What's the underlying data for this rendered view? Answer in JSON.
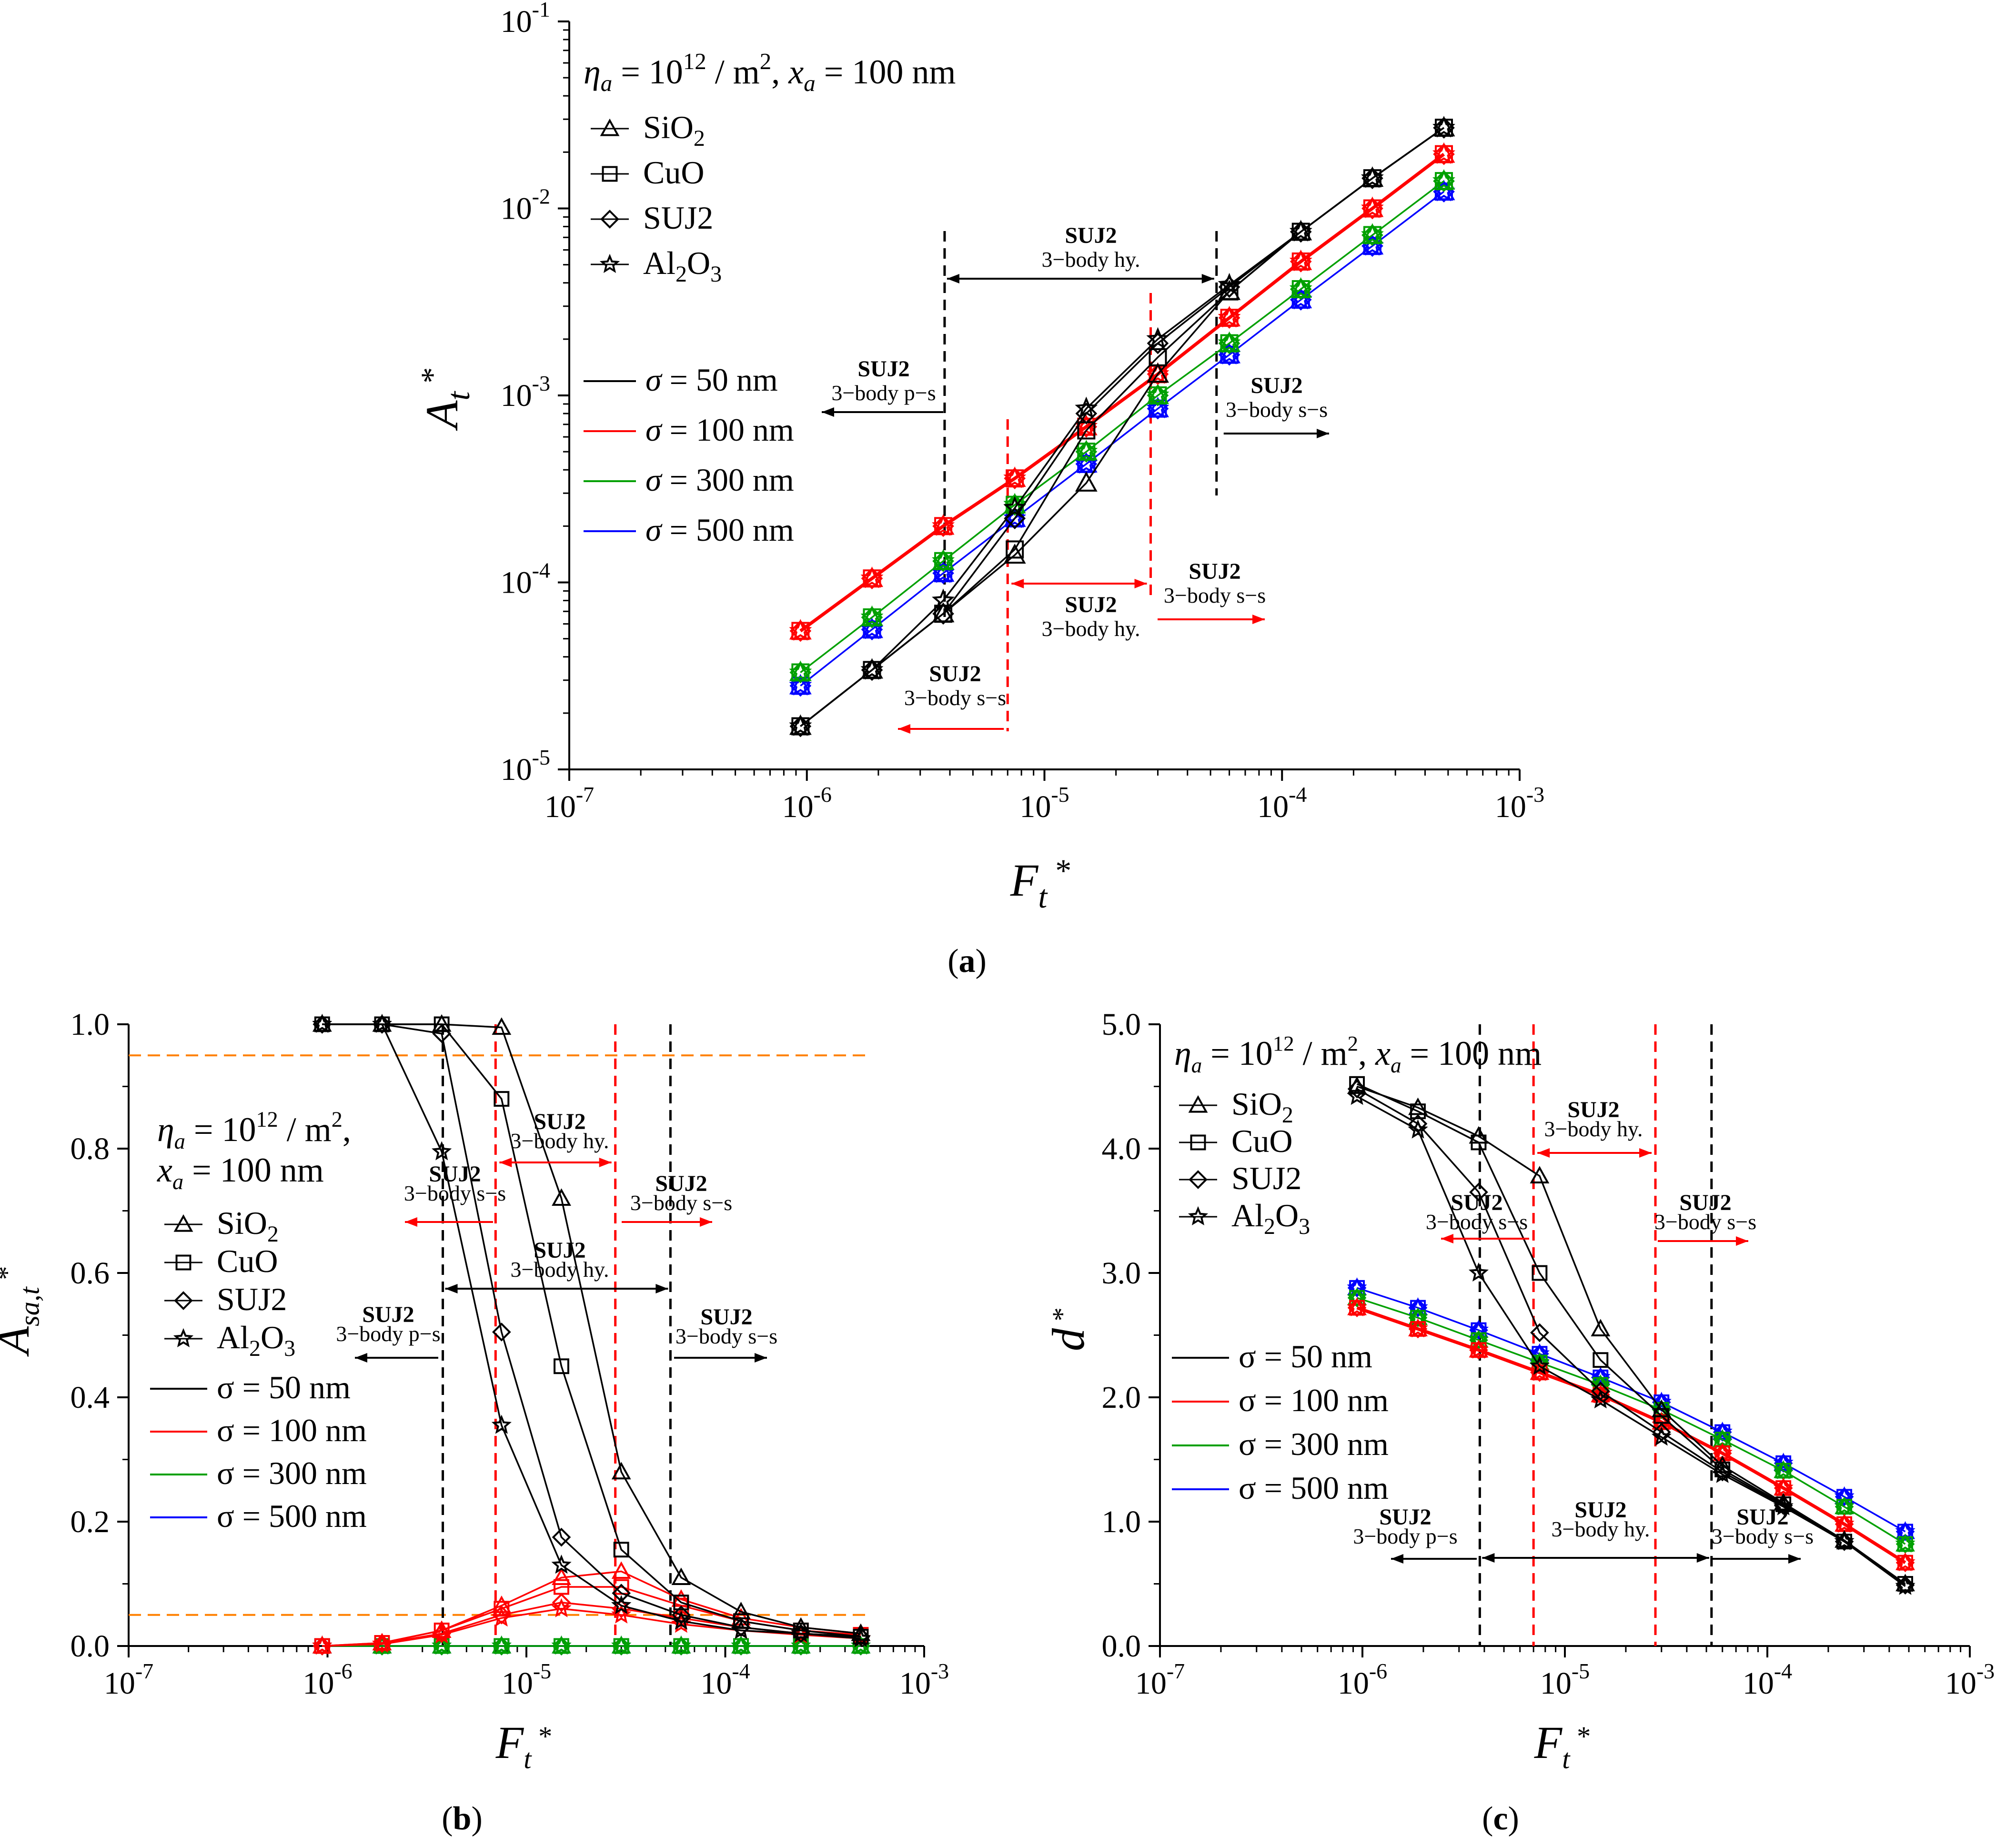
{
  "legend_materials": [
    "SiO2",
    "CuO",
    "SUJ2",
    "Al2O3"
  ],
  "legend_sigmas": [
    "σ = 50 nm",
    "σ = 100 nm",
    "σ = 300 nm",
    "σ = 500 nm"
  ],
  "sigma_colors": [
    "#000000",
    "#ff0000",
    "#00a000",
    "#0000ff"
  ],
  "material_markers": [
    "triangle",
    "square",
    "diamond",
    "star"
  ],
  "regimes": {
    "name": "SUJ2",
    "p_s": "3−body p−s",
    "hy": "3−body hy.",
    "s_s": "3−body s−s"
  },
  "chart_data": [
    {
      "id": "a",
      "panel_label": "a",
      "type": "line",
      "annotation": "ηa = 10^12 / m^2, xa = 100 nm",
      "xlabel": "Ft *",
      "ylabel": "At *",
      "xscale": "log",
      "yscale": "log",
      "xlim": [
        1e-07,
        0.001
      ],
      "ylim": [
        1e-05,
        0.1
      ],
      "x": [
        9.4e-07,
        1.88e-06,
        3.75e-06,
        7.5e-06,
        1.5e-05,
        3e-05,
        6e-05,
        0.00012,
        0.00024,
        0.00048
      ],
      "series": [
        {
          "material": "SiO2",
          "sigma": 50,
          "values": [
            1.7e-05,
            3.4e-05,
            6.8e-05,
            0.00014,
            0.00034,
            0.0013,
            0.0036,
            0.0075,
            0.0145,
            0.027
          ]
        },
        {
          "material": "CuO",
          "sigma": 50,
          "values": [
            1.7e-05,
            3.4e-05,
            6.8e-05,
            0.00015,
            0.00065,
            0.0016,
            0.0036,
            0.0075,
            0.0145,
            0.027
          ]
        },
        {
          "material": "SUJ2",
          "sigma": 50,
          "values": [
            1.7e-05,
            3.4e-05,
            6.8e-05,
            0.00022,
            0.0008,
            0.0019,
            0.0038,
            0.0075,
            0.0145,
            0.027
          ]
        },
        {
          "material": "Al2O3",
          "sigma": 50,
          "values": [
            1.7e-05,
            3.4e-05,
            8e-05,
            0.00025,
            0.00085,
            0.002,
            0.0039,
            0.0075,
            0.0145,
            0.027
          ]
        },
        {
          "material": "all",
          "sigma": 100,
          "values": [
            5.5e-05,
            0.000105,
            0.0002,
            0.00036,
            0.00068,
            0.0013,
            0.0026,
            0.0052,
            0.01,
            0.0195
          ]
        },
        {
          "material": "all",
          "sigma": 300,
          "values": [
            3.3e-05,
            6.5e-05,
            0.00013,
            0.00026,
            0.0005,
            0.001,
            0.0019,
            0.0037,
            0.0072,
            0.014
          ]
        },
        {
          "material": "all",
          "sigma": 500,
          "values": [
            2.8e-05,
            5.6e-05,
            0.000112,
            0.00022,
            0.00043,
            0.00085,
            0.00165,
            0.00325,
            0.0063,
            0.0123
          ]
        }
      ],
      "vlines": [
        {
          "x": 3.8e-06,
          "color": "black"
        },
        {
          "x": 5.3e-05,
          "color": "black"
        },
        {
          "x": 7e-06,
          "color": "red"
        },
        {
          "x": 2.8e-05,
          "color": "red"
        }
      ]
    },
    {
      "id": "b",
      "panel_label": "b",
      "type": "line",
      "annotation_line1": "ηa = 10^12 / m^2,",
      "annotation_line2": "xa = 100 nm",
      "xlabel": "Ft *",
      "ylabel": "Asa,t *",
      "xscale": "log",
      "yscale": "linear",
      "xlim": [
        1e-07,
        0.001
      ],
      "ylim": [
        0,
        1.0
      ],
      "yticks": [
        "0.0",
        "0.2",
        "0.4",
        "0.6",
        "0.8",
        "1.0"
      ],
      "hlines": [
        0.95,
        0.05
      ],
      "x": [
        9.4e-07,
        1.88e-06,
        3.75e-06,
        7.5e-06,
        1.5e-05,
        3e-05,
        6e-05,
        0.00012,
        0.00024,
        0.00048
      ],
      "series": [
        {
          "material": "SiO2",
          "sigma": 50,
          "values": [
            1.0,
            1.0,
            1.0,
            0.995,
            0.72,
            0.28,
            0.11,
            0.055,
            0.03,
            0.02
          ]
        },
        {
          "material": "CuO",
          "sigma": 50,
          "values": [
            1.0,
            1.0,
            1.0,
            0.88,
            0.45,
            0.155,
            0.07,
            0.04,
            0.025,
            0.015
          ]
        },
        {
          "material": "SUJ2",
          "sigma": 50,
          "values": [
            1.0,
            1.0,
            0.985,
            0.505,
            0.175,
            0.085,
            0.05,
            0.03,
            0.02,
            0.015
          ]
        },
        {
          "material": "Al2O3",
          "sigma": 50,
          "values": [
            1.0,
            1.0,
            0.795,
            0.355,
            0.13,
            0.065,
            0.04,
            0.025,
            0.02,
            0.012
          ]
        },
        {
          "material": "SiO2",
          "sigma": 100,
          "values": [
            0.0,
            0.005,
            0.025,
            0.065,
            0.11,
            0.12,
            0.075,
            0.045,
            0.03,
            0.02
          ]
        },
        {
          "material": "CuO",
          "sigma": 100,
          "values": [
            0.0,
            0.005,
            0.025,
            0.06,
            0.095,
            0.095,
            0.065,
            0.04,
            0.025,
            0.018
          ]
        },
        {
          "material": "SUJ2",
          "sigma": 100,
          "values": [
            0.0,
            0.004,
            0.02,
            0.05,
            0.07,
            0.06,
            0.045,
            0.03,
            0.02,
            0.015
          ]
        },
        {
          "material": "Al2O3",
          "sigma": 100,
          "values": [
            0.0,
            0.003,
            0.018,
            0.045,
            0.06,
            0.05,
            0.035,
            0.025,
            0.018,
            0.012
          ]
        },
        {
          "material": "all",
          "sigma": 300,
          "values": [
            0.0,
            0.0,
            0.0,
            0.0,
            0.0,
            0.0,
            0.0,
            0.0,
            0.0,
            0.0
          ]
        },
        {
          "material": "all",
          "sigma": 500,
          "values": [
            0.0,
            0.0,
            0.0,
            0.0,
            0.0,
            0.0,
            0.0,
            0.0,
            0.0,
            0.0
          ]
        }
      ],
      "vlines": [
        {
          "x": 3.8e-06,
          "color": "black"
        },
        {
          "x": 5.3e-05,
          "color": "black"
        },
        {
          "x": 7e-06,
          "color": "red"
        },
        {
          "x": 2.8e-05,
          "color": "red"
        }
      ]
    },
    {
      "id": "c",
      "panel_label": "c",
      "type": "line",
      "annotation": "ηa = 10^12 / m^2, xa = 100 nm",
      "xlabel": "Ft *",
      "ylabel": "d *",
      "xscale": "log",
      "yscale": "linear",
      "xlim": [
        1e-07,
        0.001
      ],
      "ylim": [
        0,
        5.0
      ],
      "yticks": [
        "0.0",
        "1.0",
        "2.0",
        "3.0",
        "4.0",
        "5.0"
      ],
      "x": [
        9.4e-07,
        1.88e-06,
        3.75e-06,
        7.5e-06,
        1.5e-05,
        3e-05,
        6e-05,
        0.00012,
        0.00024,
        0.00048
      ],
      "series": [
        {
          "material": "SiO2",
          "sigma": 50,
          "values": [
            4.5,
            4.33,
            4.1,
            3.78,
            2.55,
            1.9,
            1.45,
            1.15,
            0.85,
            0.5
          ]
        },
        {
          "material": "CuO",
          "sigma": 50,
          "values": [
            4.52,
            4.3,
            4.05,
            3.0,
            2.3,
            1.85,
            1.42,
            1.14,
            0.84,
            0.5
          ]
        },
        {
          "material": "SUJ2",
          "sigma": 50,
          "values": [
            4.48,
            4.2,
            3.65,
            2.52,
            2.05,
            1.72,
            1.4,
            1.13,
            0.84,
            0.49
          ]
        },
        {
          "material": "Al2O3",
          "sigma": 50,
          "values": [
            4.42,
            4.15,
            3.0,
            2.25,
            1.98,
            1.68,
            1.38,
            1.12,
            0.84,
            0.48
          ]
        },
        {
          "material": "all",
          "sigma": 100,
          "values": [
            2.72,
            2.55,
            2.38,
            2.2,
            2.02,
            1.8,
            1.55,
            1.27,
            0.98,
            0.67
          ]
        },
        {
          "material": "all",
          "sigma": 300,
          "values": [
            2.8,
            2.64,
            2.46,
            2.28,
            2.1,
            1.9,
            1.66,
            1.41,
            1.12,
            0.82
          ]
        },
        {
          "material": "all",
          "sigma": 500,
          "values": [
            2.88,
            2.72,
            2.54,
            2.35,
            2.16,
            1.96,
            1.72,
            1.47,
            1.2,
            0.92
          ]
        }
      ],
      "vlines": [
        {
          "x": 3.8e-06,
          "color": "black"
        },
        {
          "x": 5.3e-05,
          "color": "black"
        },
        {
          "x": 7e-06,
          "color": "red"
        },
        {
          "x": 2.8e-05,
          "color": "red"
        }
      ]
    }
  ]
}
